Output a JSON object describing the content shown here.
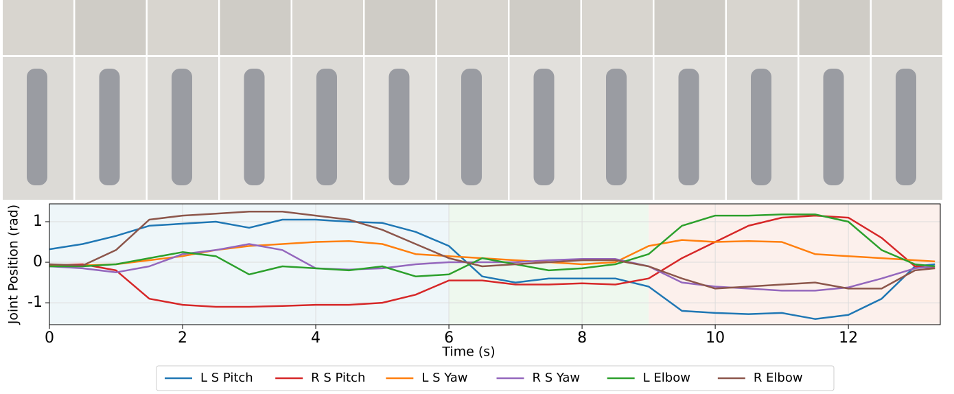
{
  "chart_data": {
    "type": "line",
    "x_label": "Time (s)",
    "y_label": "Joint Position (rad)",
    "x": [
      0,
      0.5,
      1,
      1.5,
      2,
      2.5,
      3,
      3.5,
      4,
      4.5,
      5,
      5.5,
      6,
      6.5,
      7,
      7.5,
      8,
      8.5,
      9,
      9.5,
      10,
      10.5,
      11,
      11.5,
      12,
      12.5,
      13,
      13.3
    ],
    "series": [
      {
        "name": "L S Pitch",
        "color": "#1f77b4",
        "values": [
          0.32,
          0.45,
          0.65,
          0.9,
          0.95,
          1.0,
          0.85,
          1.05,
          1.05,
          1.0,
          0.97,
          0.75,
          0.4,
          -0.35,
          -0.5,
          -0.4,
          -0.4,
          -0.4,
          -0.6,
          -1.2,
          -1.25,
          -1.28,
          -1.25,
          -1.4,
          -1.3,
          -0.9,
          -0.1,
          -0.05
        ]
      },
      {
        "name": "R S Pitch",
        "color": "#d62728",
        "values": [
          -0.08,
          -0.05,
          -0.2,
          -0.9,
          -1.05,
          -1.1,
          -1.1,
          -1.08,
          -1.05,
          -1.05,
          -1.0,
          -0.8,
          -0.45,
          -0.45,
          -0.55,
          -0.55,
          -0.52,
          -0.55,
          -0.4,
          0.1,
          0.5,
          0.9,
          1.1,
          1.15,
          1.1,
          0.6,
          -0.1,
          -0.15
        ]
      },
      {
        "name": "L S Yaw",
        "color": "#ff7f0e",
        "values": [
          -0.1,
          -0.08,
          -0.05,
          0.05,
          0.15,
          0.3,
          0.4,
          0.45,
          0.5,
          0.52,
          0.45,
          0.2,
          0.15,
          0.1,
          0.05,
          0.0,
          -0.05,
          0.0,
          0.4,
          0.55,
          0.5,
          0.52,
          0.5,
          0.2,
          0.15,
          0.1,
          0.05,
          0.02
        ]
      },
      {
        "name": "R S Yaw",
        "color": "#9467bd",
        "values": [
          -0.1,
          -0.15,
          -0.25,
          -0.1,
          0.2,
          0.3,
          0.45,
          0.3,
          -0.15,
          -0.18,
          -0.15,
          -0.05,
          0.0,
          0.0,
          0.0,
          0.05,
          0.08,
          0.08,
          -0.1,
          -0.5,
          -0.6,
          -0.65,
          -0.7,
          -0.7,
          -0.62,
          -0.4,
          -0.15,
          -0.1
        ]
      },
      {
        "name": "L Elbow",
        "color": "#2ca02c",
        "values": [
          -0.1,
          -0.1,
          -0.05,
          0.1,
          0.25,
          0.15,
          -0.3,
          -0.1,
          -0.15,
          -0.2,
          -0.1,
          -0.35,
          -0.3,
          0.1,
          -0.05,
          -0.2,
          -0.15,
          -0.05,
          0.2,
          0.9,
          1.15,
          1.15,
          1.18,
          1.18,
          1.0,
          0.3,
          -0.05,
          -0.1
        ]
      },
      {
        "name": "R Elbow",
        "color": "#8c564b",
        "values": [
          -0.05,
          -0.08,
          0.3,
          1.05,
          1.15,
          1.2,
          1.25,
          1.25,
          1.15,
          1.05,
          0.8,
          0.45,
          0.1,
          -0.1,
          -0.05,
          0.0,
          0.05,
          0.05,
          -0.1,
          -0.4,
          -0.65,
          -0.6,
          -0.55,
          -0.5,
          -0.65,
          -0.65,
          -0.2,
          -0.15
        ]
      }
    ],
    "xlim": [
      0,
      13.38
    ],
    "ylim": [
      -1.54,
      1.44
    ],
    "xticks": [
      0,
      2,
      4,
      6,
      8,
      10,
      12
    ],
    "yticks": [
      -1,
      0,
      1
    ],
    "grid": true,
    "legend": "bottom",
    "regions": [
      {
        "start": 0,
        "end": 6,
        "color": "#eef6f9"
      },
      {
        "start": 6,
        "end": 9,
        "color": "#eef8ee"
      },
      {
        "start": 9,
        "end": 13.38,
        "color": "#fcf0ec"
      }
    ]
  }
}
